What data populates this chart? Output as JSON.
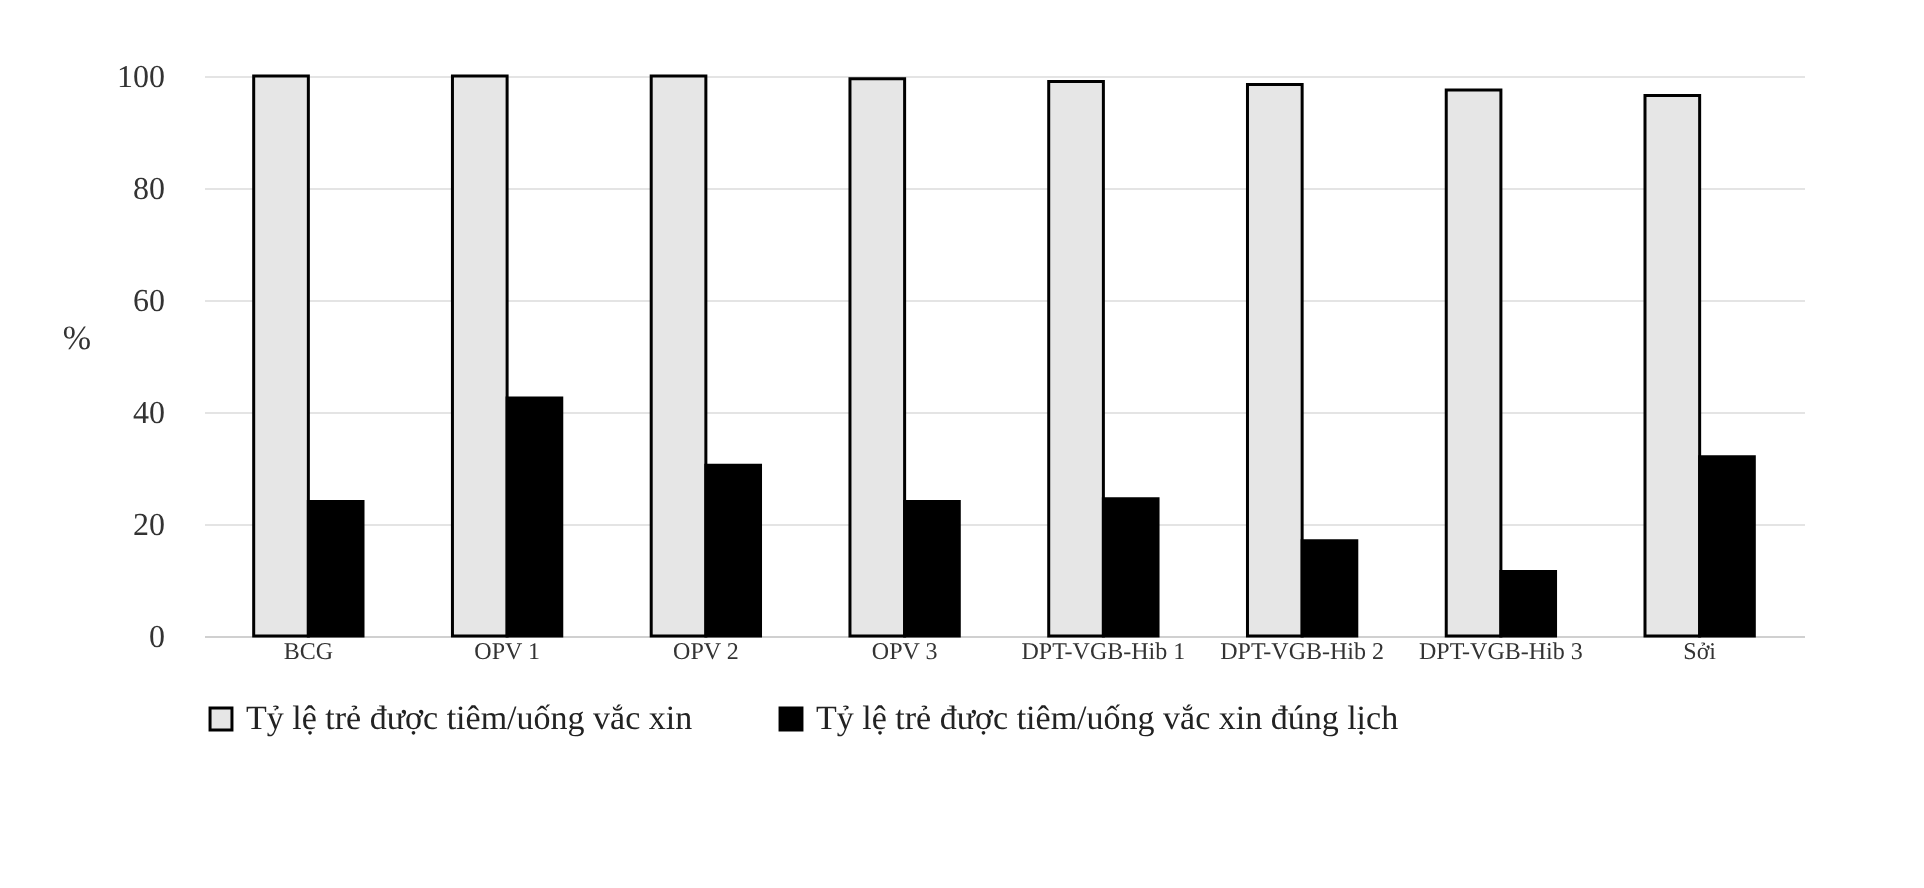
{
  "chart_data": {
    "type": "bar",
    "ylabel": "%",
    "categories": [
      "BCG",
      "OPV 1",
      "OPV 2",
      "OPV 3",
      "DPT-VGB-Hib 1",
      "DPT-VGB-Hib 2",
      "DPT-VGB-Hib 3",
      "Sởi"
    ],
    "series": [
      {
        "name": "Tỷ lệ trẻ được tiêm/uống vắc xin",
        "color": "#e6e6e6",
        "values": [
          100,
          100,
          100,
          99.5,
          99,
          98.5,
          97.5,
          96.5
        ]
      },
      {
        "name": "Tỷ lệ trẻ được tiêm/uống vắc xin đúng lịch",
        "color": "#000000",
        "values": [
          24,
          42.5,
          30.5,
          24,
          24.5,
          17,
          11.5,
          32
        ]
      }
    ],
    "ylim": [
      0,
      100
    ],
    "yticks": [
      0,
      20,
      40,
      60,
      80,
      100
    ],
    "grid": "y",
    "legend": "bottom"
  }
}
